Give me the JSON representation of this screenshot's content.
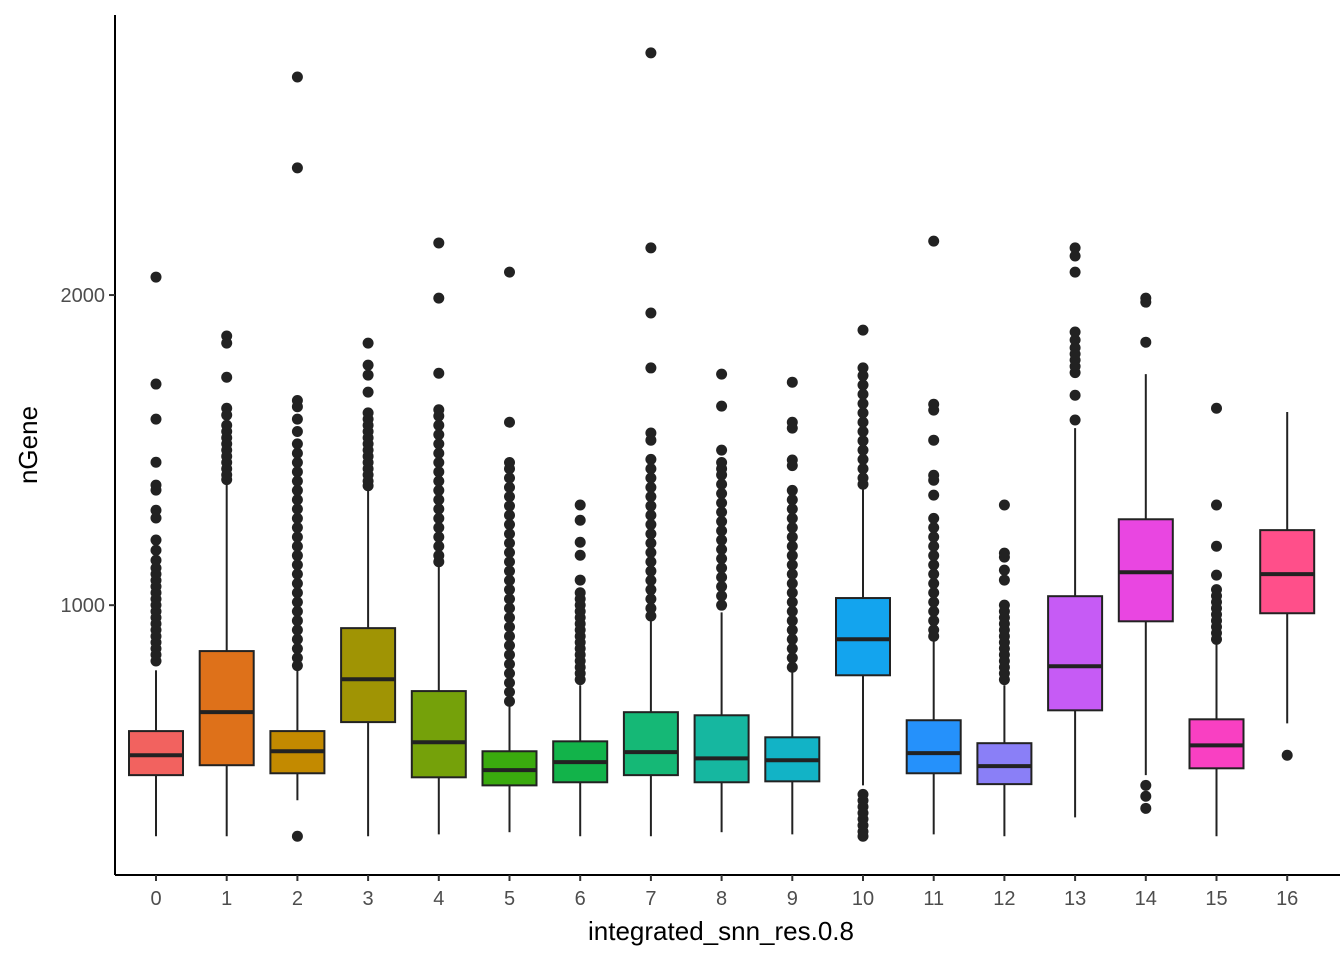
{
  "chart_data": {
    "type": "boxplot",
    "xlabel": "integrated_snn_res.0.8",
    "ylabel": "nGene",
    "ylim": [
      130,
      2903
    ],
    "yticks": [
      1000,
      2000
    ],
    "grid": false,
    "legend": "none",
    "categories": [
      "0",
      "1",
      "2",
      "3",
      "4",
      "5",
      "6",
      "7",
      "8",
      "9",
      "10",
      "11",
      "12",
      "13",
      "14",
      "15",
      "16"
    ],
    "colors": [
      "#F2625F",
      "#DE711A",
      "#C38A00",
      "#A09404",
      "#75A10A",
      "#3AAA0E",
      "#12B34A",
      "#15B876",
      "#16B7A0",
      "#12B3C6",
      "#13A4EE",
      "#2591FB",
      "#8A7FF7",
      "#C65BF5",
      "#E946E1",
      "#F940C2",
      "#FF4F8A"
    ],
    "boxes": [
      {
        "low": 255,
        "q1": 452,
        "median": 516,
        "q3": 594,
        "high": 790,
        "outliers": [
          2058,
          1713,
          1600,
          1461,
          1387,
          1371,
          1306,
          1281,
          1210,
          1177,
          1145,
          1120,
          1100,
          1080,
          1060,
          1040,
          1020,
          1000,
          980,
          960,
          940,
          920,
          900,
          880,
          860,
          840,
          820
        ]
      },
      {
        "low": 255,
        "q1": 484,
        "median": 655,
        "q3": 852,
        "high": 1400,
        "outliers": [
          1868,
          1845,
          1735,
          1635,
          1613,
          1580,
          1560,
          1540,
          1520,
          1500,
          1480,
          1460,
          1440,
          1420,
          1405
        ]
      },
      {
        "low": 371,
        "q1": 458,
        "median": 529,
        "q3": 594,
        "high": 790,
        "outliers": [
          2703,
          2410,
          255,
          1660,
          1640,
          1600,
          1560,
          1520,
          1490,
          1460,
          1430,
          1400,
          1370,
          1340,
          1310,
          1280,
          1250,
          1220,
          1190,
          1160,
          1130,
          1100,
          1070,
          1040,
          1010,
          980,
          950,
          920,
          890,
          860,
          830,
          805
        ]
      },
      {
        "low": 255,
        "q1": 623,
        "median": 761,
        "q3": 926,
        "high": 1371,
        "outliers": [
          1845,
          1774,
          1742,
          1687,
          1620,
          1600,
          1580,
          1560,
          1540,
          1520,
          1500,
          1480,
          1460,
          1440,
          1420,
          1400,
          1385
        ]
      },
      {
        "low": 261,
        "q1": 445,
        "median": 558,
        "q3": 723,
        "high": 1129,
        "outliers": [
          2168,
          1990,
          1748,
          1630,
          1610,
          1580,
          1550,
          1520,
          1490,
          1460,
          1430,
          1400,
          1370,
          1340,
          1310,
          1280,
          1250,
          1220,
          1190,
          1160,
          1140
        ]
      },
      {
        "low": 268,
        "q1": 419,
        "median": 468,
        "q3": 529,
        "high": 677,
        "outliers": [
          2074,
          1590,
          1460,
          1440,
          1410,
          1380,
          1350,
          1320,
          1290,
          1260,
          1230,
          1200,
          1170,
          1140,
          1110,
          1080,
          1050,
          1020,
          990,
          960,
          930,
          900,
          870,
          840,
          810,
          780,
          750,
          720,
          690
        ]
      },
      {
        "low": 255,
        "q1": 429,
        "median": 494,
        "q3": 561,
        "high": 742,
        "outliers": [
          1323,
          1274,
          1203,
          1161,
          1081,
          1040,
          1020,
          1000,
          980,
          960,
          940,
          920,
          900,
          880,
          860,
          840,
          820,
          800,
          780,
          760
        ]
      },
      {
        "low": 255,
        "q1": 452,
        "median": 526,
        "q3": 655,
        "high": 952,
        "outliers": [
          2781,
          2152,
          1942,
          1765,
          1555,
          1532,
          1470,
          1440,
          1410,
          1380,
          1350,
          1320,
          1290,
          1260,
          1230,
          1200,
          1170,
          1140,
          1110,
          1080,
          1050,
          1020,
          990,
          965
        ]
      },
      {
        "low": 268,
        "q1": 429,
        "median": 506,
        "q3": 645,
        "high": 977,
        "outliers": [
          1745,
          1642,
          1500,
          1460,
          1440,
          1420,
          1390,
          1360,
          1330,
          1300,
          1270,
          1240,
          1210,
          1180,
          1150,
          1120,
          1090,
          1060,
          1030,
          1000
        ]
      },
      {
        "low": 261,
        "q1": 432,
        "median": 500,
        "q3": 574,
        "high": 784,
        "outliers": [
          1719,
          1590,
          1571,
          1468,
          1450,
          1370,
          1340,
          1310,
          1280,
          1250,
          1220,
          1190,
          1160,
          1130,
          1100,
          1070,
          1040,
          1010,
          980,
          950,
          920,
          890,
          860,
          830,
          800
        ]
      },
      {
        "low": 419,
        "q1": 774,
        "median": 890,
        "q3": 1023,
        "high": 1377,
        "outliers": [
          1887,
          1765,
          1740,
          1710,
          1680,
          1650,
          1620,
          1590,
          1560,
          1530,
          1500,
          1470,
          1440,
          1410,
          1390,
          390,
          370,
          350,
          330,
          310,
          290,
          270,
          255
        ]
      },
      {
        "low": 261,
        "q1": 458,
        "median": 523,
        "q3": 629,
        "high": 887,
        "outliers": [
          2174,
          1648,
          1629,
          1532,
          1419,
          1403,
          1355,
          1280,
          1250,
          1220,
          1190,
          1160,
          1130,
          1100,
          1070,
          1040,
          1010,
          980,
          950,
          920,
          900
        ]
      },
      {
        "low": 255,
        "q1": 423,
        "median": 481,
        "q3": 555,
        "high": 742,
        "outliers": [
          1323,
          1168,
          1155,
          1113,
          1081,
          1000,
          980,
          960,
          940,
          920,
          900,
          880,
          860,
          840,
          820,
          800,
          780,
          760
        ]
      },
      {
        "low": 316,
        "q1": 661,
        "median": 803,
        "q3": 1029,
        "high": 1571,
        "outliers": [
          2152,
          2126,
          2074,
          1881,
          1855,
          1830,
          1810,
          1790,
          1770,
          1750,
          1677,
          1597
        ]
      },
      {
        "low": 452,
        "q1": 948,
        "median": 1106,
        "q3": 1277,
        "high": 1745,
        "outliers": [
          1990,
          1977,
          1848,
          419,
          384,
          345
        ]
      },
      {
        "low": 255,
        "q1": 474,
        "median": 548,
        "q3": 632,
        "high": 887,
        "outliers": [
          1635,
          1323,
          1190,
          1097,
          1050,
          1030,
          1010,
          990,
          970,
          950,
          930,
          910,
          890
        ]
      },
      {
        "low": 619,
        "q1": 974,
        "median": 1100,
        "q3": 1242,
        "high": 1623,
        "outliers": [
          516
        ]
      }
    ]
  }
}
